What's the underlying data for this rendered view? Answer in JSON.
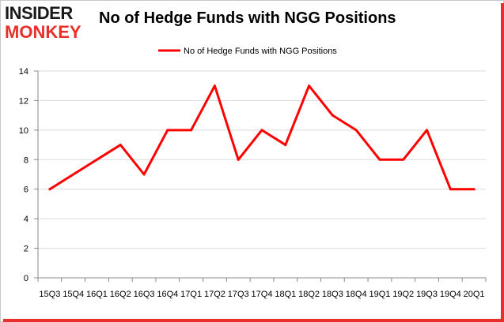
{
  "logo": {
    "line1": "INSIDER",
    "line2": "MONKEY"
  },
  "chart_data": {
    "type": "line",
    "title": "No of Hedge Funds with NGG Positions",
    "xlabel": "",
    "ylabel": "",
    "categories": [
      "15Q3",
      "15Q4",
      "16Q1",
      "16Q2",
      "16Q3",
      "16Q4",
      "17Q1",
      "17Q2",
      "17Q3",
      "17Q4",
      "18Q1",
      "18Q2",
      "18Q3",
      "18Q4",
      "19Q1",
      "19Q2",
      "19Q3",
      "19Q4",
      "20Q1"
    ],
    "series": [
      {
        "name": "No of Hedge Funds with NGG  Positions",
        "values": [
          6,
          7,
          8,
          9,
          7,
          10,
          10,
          13,
          8,
          10,
          9,
          13,
          11,
          10,
          8,
          8,
          10,
          6,
          6
        ],
        "color": "#ff0000"
      }
    ],
    "ylim": [
      0,
      14
    ],
    "yticks": [
      0,
      2,
      4,
      6,
      8,
      10,
      12,
      14
    ],
    "grid": true,
    "legend": "top-center",
    "colors": {
      "line": "#ff0000",
      "grid": "#d9d9d9",
      "border": "#e8302a"
    }
  }
}
